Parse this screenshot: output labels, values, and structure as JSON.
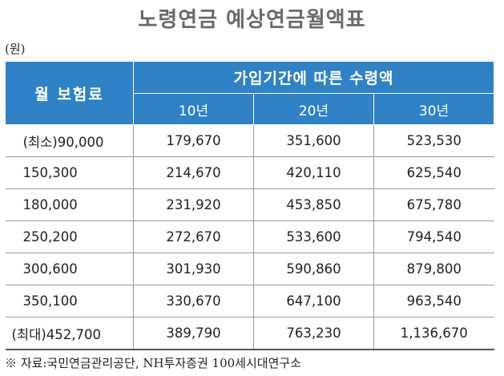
{
  "title": "노령연금 예상연금월액표",
  "unit": "(원)",
  "header": {
    "row_label": "월 보험료",
    "group_label": "가입기간에 따른 수령액",
    "periods": [
      "10년",
      "20년",
      "30년"
    ]
  },
  "rows": [
    [
      "(최소)90,000",
      "179,670",
      "351,600",
      "523,530"
    ],
    [
      "150,300",
      "214,670",
      "420,110",
      "625,540"
    ],
    [
      "180,000",
      "231,920",
      "453,850",
      "675,780"
    ],
    [
      "250,200",
      "272,670",
      "533,600",
      "794,540"
    ],
    [
      "300,600",
      "301,930",
      "590,860",
      "879,800"
    ],
    [
      "350,100",
      "330,670",
      "647,100",
      "963,540"
    ],
    [
      "(최대)452,700",
      "389,790",
      "763,230",
      "1,136,670"
    ]
  ],
  "source": "※ 자료:국민연금관리공단, NH투자증권 100세시대연구소",
  "colors": {
    "header_bg": "#2f82c6",
    "title": "#6a6a6a"
  }
}
